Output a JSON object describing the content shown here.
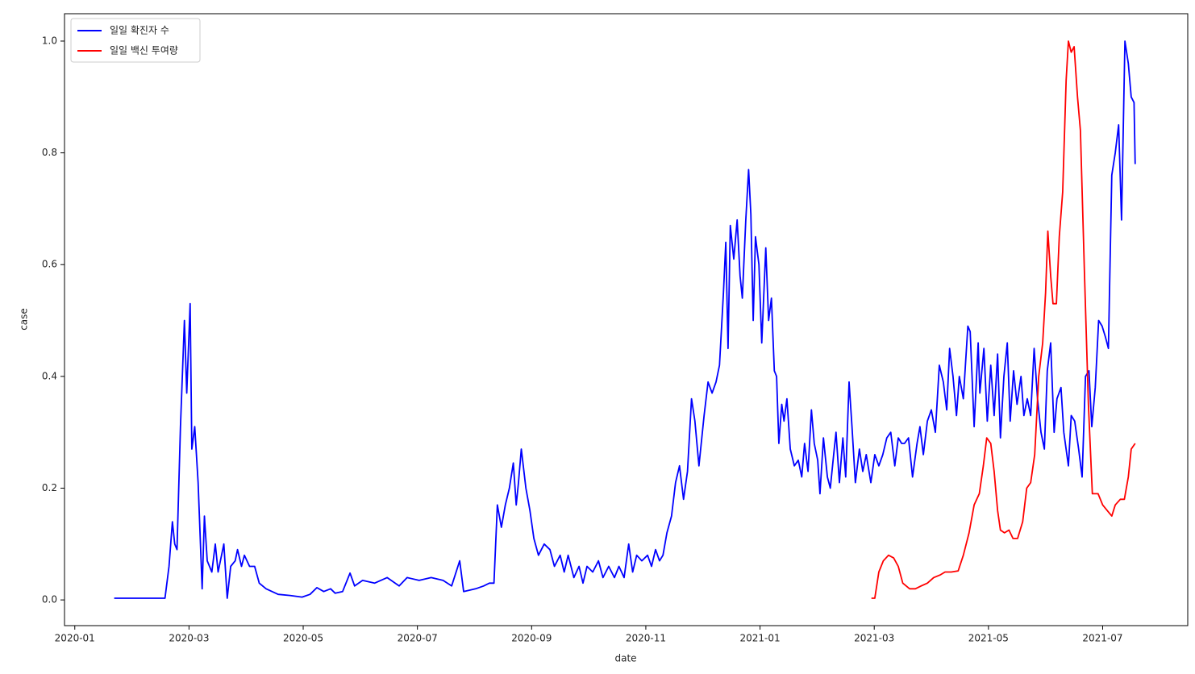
{
  "chart_data": {
    "type": "line",
    "xlabel": "date",
    "ylabel": "case",
    "xlim": [
      -0.18,
      19.49
    ],
    "ylim": [
      -0.046,
      1.049
    ],
    "xticks": [
      {
        "value": 0,
        "label": "2020-01"
      },
      {
        "value": 2,
        "label": "2020-03"
      },
      {
        "value": 4,
        "label": "2020-05"
      },
      {
        "value": 6,
        "label": "2020-07"
      },
      {
        "value": 8,
        "label": "2020-09"
      },
      {
        "value": 10,
        "label": "2020-11"
      },
      {
        "value": 12,
        "label": "2021-01"
      },
      {
        "value": 14,
        "label": "2021-03"
      },
      {
        "value": 16,
        "label": "2021-05"
      },
      {
        "value": 18,
        "label": "2021-07"
      }
    ],
    "yticks": [
      {
        "value": 0,
        "label": "0.0"
      },
      0.2,
      0.4,
      0.6,
      0.8,
      {
        "value": 1,
        "label": "1.0"
      }
    ],
    "grid": false,
    "legend": "upper left",
    "series": [
      {
        "name": "일일 확진자 수",
        "color": "#0000ff",
        "x": [
          0.69,
          1.09,
          1.58,
          1.65,
          1.71,
          1.75,
          1.79,
          1.85,
          1.92,
          1.96,
          2.02,
          2.05,
          2.1,
          2.16,
          2.23,
          2.27,
          2.32,
          2.4,
          2.46,
          2.51,
          2.61,
          2.67,
          2.73,
          2.81,
          2.85,
          2.92,
          2.97,
          3.06,
          3.15,
          3.23,
          3.35,
          3.56,
          3.77,
          3.98,
          4.12,
          4.24,
          4.36,
          4.48,
          4.56,
          4.69,
          4.82,
          4.9,
          5.04,
          5.25,
          5.47,
          5.68,
          5.82,
          6.03,
          6.24,
          6.45,
          6.6,
          6.74,
          6.81,
          7.02,
          7.16,
          7.26,
          7.34,
          7.4,
          7.47,
          7.54,
          7.61,
          7.68,
          7.73,
          7.77,
          7.82,
          7.9,
          7.97,
          8.04,
          8.12,
          8.22,
          8.32,
          8.4,
          8.5,
          8.57,
          8.64,
          8.74,
          8.83,
          8.9,
          8.97,
          9.07,
          9.17,
          9.25,
          9.35,
          9.45,
          9.53,
          9.62,
          9.7,
          9.77,
          9.84,
          9.93,
          10.03,
          10.1,
          10.17,
          10.24,
          10.3,
          10.37,
          10.45,
          10.52,
          10.59,
          10.66,
          10.73,
          10.8,
          10.86,
          10.93,
          11.02,
          11.09,
          11.16,
          11.23,
          11.29,
          11.36,
          11.4,
          11.44,
          11.48,
          11.54,
          11.6,
          11.65,
          11.69,
          11.75,
          11.8,
          11.84,
          11.88,
          11.92,
          11.98,
          12.03,
          12.1,
          12.15,
          12.2,
          12.25,
          12.29,
          12.33,
          12.38,
          12.42,
          12.47,
          12.53,
          12.6,
          12.67,
          12.73,
          12.78,
          12.84,
          12.9,
          12.95,
          13.01,
          13.05,
          13.11,
          13.18,
          13.23,
          13.29,
          13.33,
          13.39,
          13.45,
          13.5,
          13.56,
          13.61,
          13.67,
          13.74,
          13.8,
          13.86,
          13.94,
          14.01,
          14.08,
          14.15,
          14.22,
          14.29,
          14.36,
          14.42,
          14.48,
          14.53,
          14.6,
          14.67,
          14.75,
          14.8,
          14.86,
          14.93,
          15.0,
          15.07,
          15.14,
          15.21,
          15.27,
          15.32,
          15.38,
          15.44,
          15.49,
          15.56,
          15.64,
          15.68,
          15.75,
          15.82,
          15.85,
          15.92,
          15.98,
          16.04,
          16.1,
          16.16,
          16.21,
          16.27,
          16.33,
          16.38,
          16.44,
          16.5,
          16.57,
          16.62,
          16.68,
          16.74,
          16.8,
          16.86,
          16.92,
          16.98,
          17.03,
          17.09,
          17.15,
          17.2,
          17.27,
          17.32,
          17.4,
          17.45,
          17.51,
          17.58,
          17.64,
          17.7,
          17.76,
          17.81,
          17.87,
          17.93,
          17.99,
          18.05,
          18.1,
          18.16,
          18.22,
          18.28,
          18.33,
          18.39,
          18.45,
          18.5,
          18.55,
          18.57
        ],
        "values": [
          0.003,
          0.003,
          0.003,
          0.06,
          0.14,
          0.1,
          0.09,
          0.31,
          0.5,
          0.37,
          0.53,
          0.27,
          0.31,
          0.21,
          0.02,
          0.15,
          0.07,
          0.05,
          0.1,
          0.05,
          0.1,
          0.003,
          0.06,
          0.07,
          0.09,
          0.06,
          0.08,
          0.06,
          0.06,
          0.03,
          0.02,
          0.01,
          0.008,
          0.005,
          0.01,
          0.022,
          0.015,
          0.02,
          0.012,
          0.015,
          0.048,
          0.025,
          0.035,
          0.03,
          0.04,
          0.025,
          0.04,
          0.035,
          0.04,
          0.035,
          0.025,
          0.07,
          0.015,
          0.02,
          0.025,
          0.03,
          0.03,
          0.17,
          0.13,
          0.17,
          0.2,
          0.245,
          0.17,
          0.21,
          0.27,
          0.2,
          0.16,
          0.11,
          0.08,
          0.1,
          0.09,
          0.06,
          0.08,
          0.05,
          0.08,
          0.04,
          0.06,
          0.03,
          0.06,
          0.05,
          0.07,
          0.04,
          0.06,
          0.04,
          0.06,
          0.04,
          0.1,
          0.05,
          0.08,
          0.07,
          0.08,
          0.06,
          0.09,
          0.07,
          0.08,
          0.12,
          0.15,
          0.21,
          0.24,
          0.18,
          0.23,
          0.36,
          0.32,
          0.24,
          0.33,
          0.39,
          0.37,
          0.39,
          0.42,
          0.55,
          0.64,
          0.45,
          0.67,
          0.61,
          0.68,
          0.58,
          0.54,
          0.68,
          0.77,
          0.69,
          0.5,
          0.65,
          0.6,
          0.46,
          0.63,
          0.5,
          0.54,
          0.41,
          0.4,
          0.28,
          0.35,
          0.32,
          0.36,
          0.27,
          0.24,
          0.25,
          0.22,
          0.28,
          0.23,
          0.34,
          0.28,
          0.25,
          0.19,
          0.29,
          0.22,
          0.2,
          0.26,
          0.3,
          0.21,
          0.29,
          0.22,
          0.39,
          0.31,
          0.21,
          0.27,
          0.23,
          0.26,
          0.21,
          0.26,
          0.24,
          0.26,
          0.29,
          0.3,
          0.24,
          0.29,
          0.28,
          0.28,
          0.29,
          0.22,
          0.28,
          0.31,
          0.26,
          0.32,
          0.34,
          0.3,
          0.42,
          0.39,
          0.34,
          0.45,
          0.4,
          0.33,
          0.4,
          0.36,
          0.49,
          0.48,
          0.31,
          0.46,
          0.37,
          0.45,
          0.32,
          0.42,
          0.33,
          0.44,
          0.29,
          0.4,
          0.46,
          0.32,
          0.41,
          0.35,
          0.4,
          0.33,
          0.36,
          0.33,
          0.45,
          0.36,
          0.3,
          0.27,
          0.41,
          0.46,
          0.3,
          0.36,
          0.38,
          0.3,
          0.24,
          0.33,
          0.32,
          0.27,
          0.22,
          0.4,
          0.41,
          0.31,
          0.38,
          0.5,
          0.49,
          0.47,
          0.45,
          0.76,
          0.8,
          0.85,
          0.68,
          1.0,
          0.96,
          0.9,
          0.89,
          0.78
        ]
      },
      {
        "name": "일일 백신 투여량",
        "color": "#ff0000",
        "x": [
          13.95,
          14.01,
          14.08,
          14.16,
          14.25,
          14.34,
          14.42,
          14.5,
          14.62,
          14.72,
          14.82,
          14.93,
          15.04,
          15.16,
          15.24,
          15.35,
          15.47,
          15.56,
          15.66,
          15.75,
          15.84,
          15.91,
          15.97,
          16.04,
          16.1,
          16.16,
          16.21,
          16.28,
          16.36,
          16.43,
          16.51,
          16.6,
          16.67,
          16.74,
          16.81,
          16.88,
          16.95,
          17.0,
          17.04,
          17.09,
          17.13,
          17.19,
          17.24,
          17.3,
          17.36,
          17.4,
          17.45,
          17.5,
          17.56,
          17.61,
          17.68,
          17.75,
          17.82,
          17.92,
          18.0,
          18.08,
          18.16,
          18.22,
          18.31,
          18.38,
          18.45,
          18.5,
          18.57
        ],
        "values": [
          0.003,
          0.003,
          0.05,
          0.07,
          0.08,
          0.075,
          0.06,
          0.03,
          0.02,
          0.02,
          0.025,
          0.03,
          0.04,
          0.045,
          0.05,
          0.05,
          0.052,
          0.08,
          0.12,
          0.17,
          0.19,
          0.24,
          0.29,
          0.28,
          0.23,
          0.16,
          0.125,
          0.12,
          0.125,
          0.11,
          0.11,
          0.14,
          0.2,
          0.21,
          0.26,
          0.4,
          0.46,
          0.55,
          0.66,
          0.58,
          0.53,
          0.53,
          0.65,
          0.73,
          0.93,
          1.0,
          0.98,
          0.99,
          0.9,
          0.84,
          0.59,
          0.35,
          0.19,
          0.19,
          0.17,
          0.16,
          0.15,
          0.17,
          0.18,
          0.18,
          0.22,
          0.27,
          0.28
        ]
      }
    ]
  }
}
